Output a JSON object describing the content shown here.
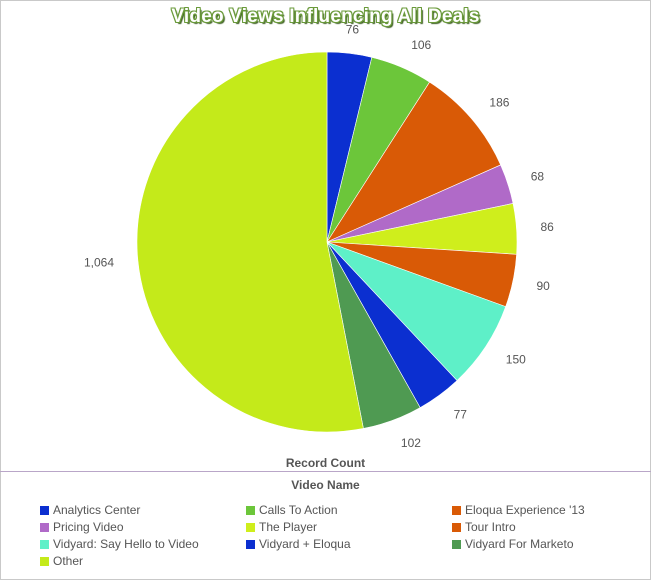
{
  "chart_data": {
    "type": "pie",
    "title": "Video Views Influencing All Deals",
    "value_axis_label": "Record Count",
    "category_axis_label": "Video Name",
    "legend_position": "bottom",
    "slices": [
      {
        "label": "Analytics Center",
        "value": 76,
        "value_label": "76",
        "color": "#0b2fd0"
      },
      {
        "label": "Calls To Action",
        "value": 106,
        "value_label": "106",
        "color": "#6cc63a"
      },
      {
        "label": "Eloqua Experience '13",
        "value": 186,
        "value_label": "186",
        "color": "#d95a06"
      },
      {
        "label": "Pricing Video",
        "value": 68,
        "value_label": "68",
        "color": "#b06ac8"
      },
      {
        "label": "The Player",
        "value": 86,
        "value_label": "86",
        "color": "#cfee1c"
      },
      {
        "label": "Tour Intro",
        "value": 90,
        "value_label": "90",
        "color": "#d95a06"
      },
      {
        "label": "Vidyard: Say Hello to Video",
        "value": 150,
        "value_label": "150",
        "color": "#5ef0c8"
      },
      {
        "label": "Vidyard + Eloqua",
        "value": 77,
        "value_label": "77",
        "color": "#0b2fd0"
      },
      {
        "label": "Vidyard For Marketo",
        "value": 102,
        "value_label": "102",
        "color": "#4f9a52"
      },
      {
        "label": "Other",
        "value": 1064,
        "value_label": "1,064",
        "color": "#c4ea1a"
      }
    ]
  }
}
